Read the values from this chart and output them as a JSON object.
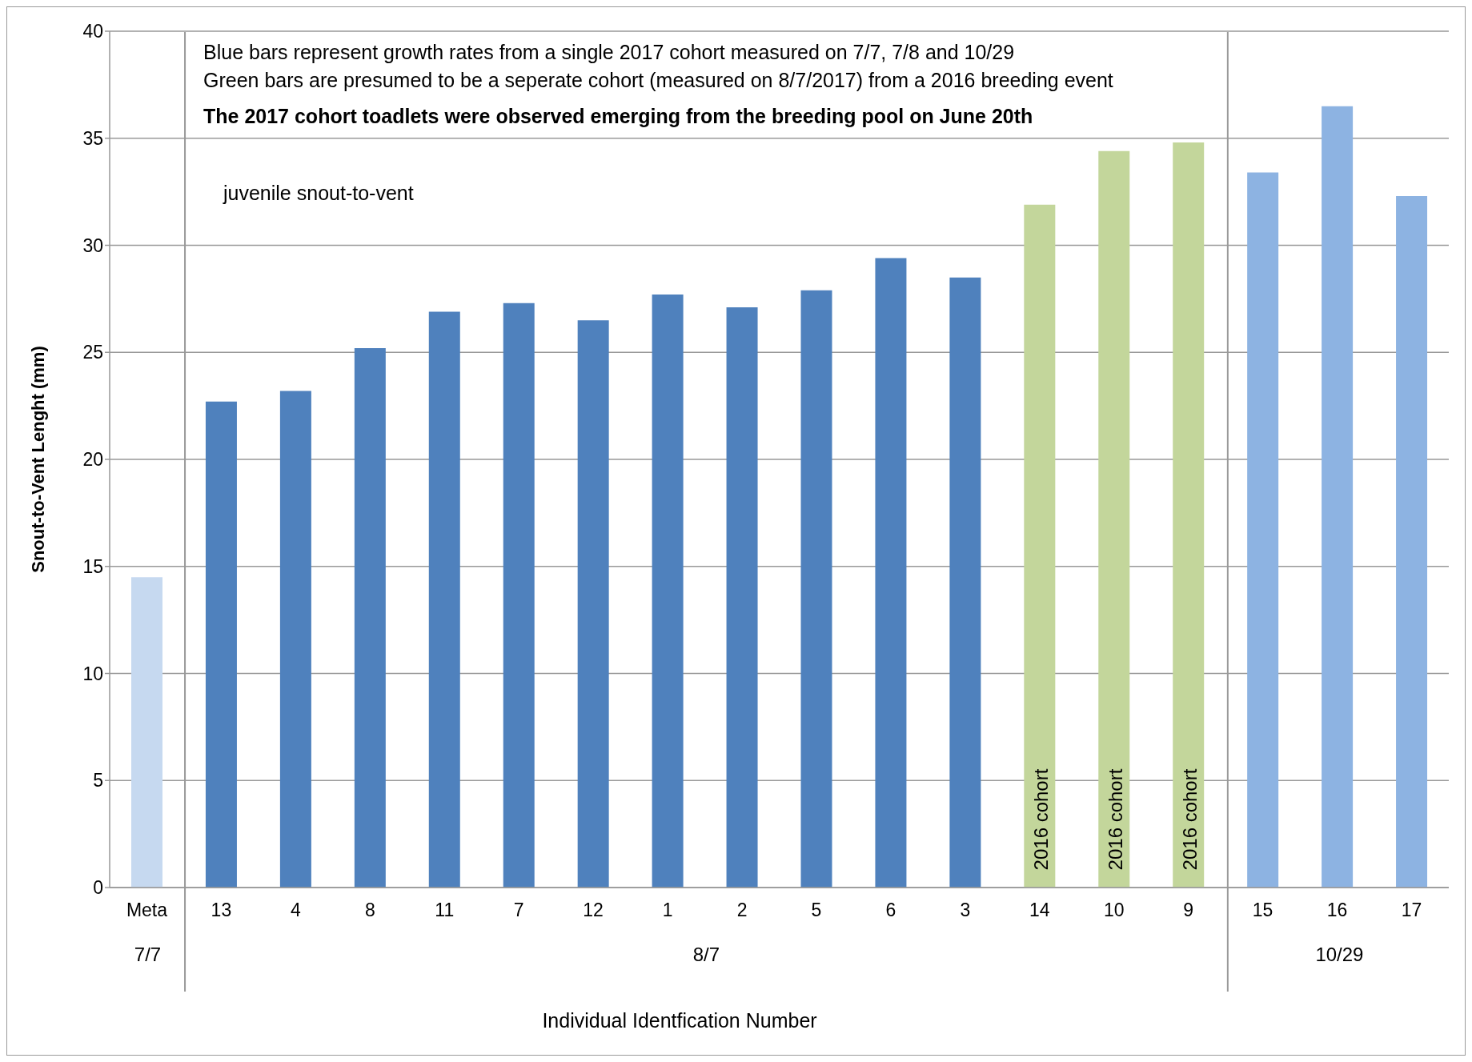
{
  "chart_data": {
    "type": "bar",
    "xlabel": "Individual Identfication Number",
    "ylabel": "Snout-to-Vent Lenght (mm)",
    "categories": [
      "Meta",
      "13",
      "4",
      "8",
      "11",
      "7",
      "12",
      "1",
      "2",
      "5",
      "6",
      "3",
      "14",
      "10",
      "9",
      "15",
      "16",
      "17"
    ],
    "values": [
      14.5,
      22.7,
      23.2,
      25.2,
      26.9,
      27.3,
      26.5,
      27.7,
      27.1,
      27.9,
      29.4,
      28.5,
      31.9,
      34.4,
      34.8,
      33.4,
      36.5,
      32.3
    ],
    "colors": [
      "#c6d9f0",
      "#4f81bd",
      "#4f81bd",
      "#4f81bd",
      "#4f81bd",
      "#4f81bd",
      "#4f81bd",
      "#4f81bd",
      "#4f81bd",
      "#4f81bd",
      "#4f81bd",
      "#4f81bd",
      "#c3d69b",
      "#c3d69b",
      "#c3d69b",
      "#8db3e2",
      "#8db3e2",
      "#8db3e2"
    ],
    "ylim": [
      0,
      40
    ],
    "yticks": [
      0,
      5,
      10,
      15,
      20,
      25,
      30,
      35,
      40
    ],
    "grid": "y",
    "legend": false,
    "annotations": [
      "Blue bars represent growth rates from a single 2017 cohort measured on 7/7, 7/8 and 10/29",
      "Green bars are presumed to be a seperate cohort (measured on 8/7/2017) from a 2016 breeding event",
      "The 2017 cohort toadlets were observed emerging from the breeding pool on June 20th",
      "juvenile snout-to-vent",
      "7/7",
      "8/7",
      "10/29",
      "2016 cohort",
      "2016 cohort",
      "2016 cohort"
    ]
  }
}
